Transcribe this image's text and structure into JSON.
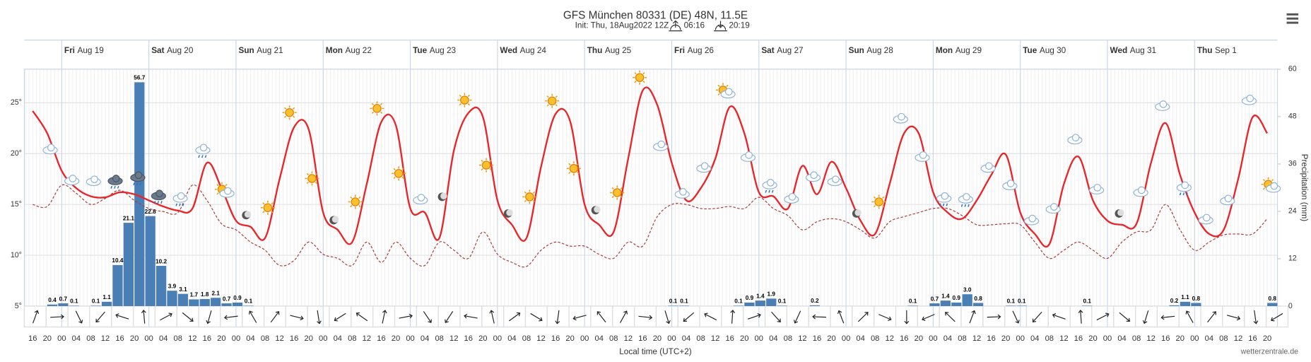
{
  "chart_data": [
    {
      "type": "line",
      "title": "GFS München 80331 (DE) 48N, 11.5E",
      "subtitle": "Init: Thu, 18Aug2022 12Z",
      "sunrise": "06:16",
      "sunset": "20:19",
      "xlabel": "Local time (UTC+2)",
      "credit": "wetterzentrale.de",
      "days": [
        {
          "day": "Fri",
          "date": "Aug 19"
        },
        {
          "day": "Sat",
          "date": "Aug 20"
        },
        {
          "day": "Sun",
          "date": "Aug 21"
        },
        {
          "day": "Mon",
          "date": "Aug 22"
        },
        {
          "day": "Tue",
          "date": "Aug 23"
        },
        {
          "day": "Wed",
          "date": "Aug 24"
        },
        {
          "day": "Thu",
          "date": "Aug 25"
        },
        {
          "day": "Fri",
          "date": "Aug 26"
        },
        {
          "day": "Sat",
          "date": "Aug 27"
        },
        {
          "day": "Sun",
          "date": "Aug 28"
        },
        {
          "day": "Mon",
          "date": "Aug 29"
        },
        {
          "day": "Tue",
          "date": "Aug 30"
        },
        {
          "day": "Wed",
          "date": "Aug 31"
        },
        {
          "day": "Thu",
          "date": "Sep 1"
        }
      ],
      "categories": [
        "16",
        "20",
        "00",
        "04",
        "08",
        "12",
        "16",
        "20",
        "00",
        "04",
        "08",
        "12",
        "16",
        "20",
        "00",
        "04",
        "08",
        "12",
        "16",
        "20",
        "00",
        "04",
        "08",
        "12",
        "16",
        "20",
        "00",
        "04",
        "08",
        "12",
        "16",
        "20",
        "00",
        "04",
        "08",
        "12",
        "16",
        "20",
        "00",
        "04",
        "08",
        "12",
        "16",
        "20",
        "00",
        "04",
        "08",
        "12",
        "16",
        "20",
        "00",
        "04",
        "08",
        "12",
        "16",
        "20",
        "00",
        "04",
        "08",
        "12",
        "16",
        "20",
        "00",
        "04",
        "08",
        "12",
        "16",
        "20",
        "00",
        "04",
        "08",
        "12",
        "16",
        "20",
        "00",
        "04",
        "08",
        "12",
        "16",
        "20",
        "00",
        "04",
        "08",
        "12",
        "16",
        "20"
      ],
      "ylim": [
        5,
        28.3
      ],
      "yticks": [
        {
          "value": 5,
          "label": "5°"
        },
        {
          "value": 10,
          "label": "10°"
        },
        {
          "value": 15,
          "label": "15°"
        },
        {
          "value": 20,
          "label": "20°"
        },
        {
          "value": 25,
          "label": "25°"
        }
      ],
      "grid": true,
      "series": [
        {
          "color": "#e8262a",
          "style": "solid",
          "values": [
            24.2,
            22.0,
            18.3,
            16.6,
            15.8,
            15.7,
            16.2,
            16.0,
            15.4,
            14.8,
            14.4,
            14.6,
            19.1,
            16.6,
            13.4,
            12.8,
            11.7,
            17.5,
            22.6,
            22.4,
            14.2,
            12.5,
            11.3,
            17.0,
            23.1,
            22.8,
            14.6,
            14.2,
            11.7,
            20.3,
            24.0,
            23.6,
            15.4,
            13.0,
            11.7,
            18.7,
            23.9,
            23.2,
            15.0,
            13.0,
            12.3,
            19.5,
            26.2,
            24.8,
            19.1,
            15.4,
            16.6,
            19.5,
            24.6,
            22.0,
            16.2,
            15.8,
            14.6,
            18.8,
            16.0,
            19.2,
            16.6,
            13.4,
            12.1,
            17.0,
            22.0,
            22.0,
            16.2,
            14.2,
            13.6,
            15.4,
            17.9,
            19.9,
            14.2,
            12.1,
            11.1,
            17.0,
            19.7,
            15.4,
            13.4,
            13.0,
            13.1,
            19.1,
            23.0,
            17.9,
            14.2,
            12.1,
            12.5,
            17.5,
            23.6,
            22.0
          ]
        },
        {
          "color": "#a83a3a",
          "style": "dashed",
          "values": [
            15.0,
            14.8,
            16.9,
            16.1,
            15.0,
            15.6,
            16.4,
            15.4,
            14.6,
            14.3,
            14.2,
            16.9,
            15.4,
            13.1,
            12.5,
            11.3,
            10.5,
            9.0,
            9.5,
            11.3,
            10.1,
            9.7,
            9.0,
            11.3,
            9.3,
            11.3,
            9.7,
            9.0,
            11.3,
            10.5,
            9.7,
            12.3,
            10.1,
            9.3,
            8.9,
            10.5,
            11.3,
            10.9,
            10.9,
            10.1,
            9.7,
            11.3,
            10.9,
            13.8,
            15.0,
            15.0,
            14.6,
            14.6,
            14.8,
            14.6,
            15.7,
            14.6,
            13.9,
            12.5,
            13.3,
            13.6,
            13.3,
            12.5,
            11.7,
            13.3,
            13.8,
            14.2,
            14.6,
            14.6,
            13.9,
            13.0,
            13.0,
            13.1,
            13.0,
            11.3,
            9.7,
            10.5,
            11.3,
            10.5,
            9.7,
            11.3,
            12.3,
            12.5,
            15.0,
            12.5,
            10.5,
            11.3,
            12.0,
            12.1,
            12.1,
            13.6
          ]
        }
      ]
    },
    {
      "type": "bar",
      "y2label": "Precipitation (mm)",
      "color": "#4a7fb5",
      "y2lim": [
        0,
        60
      ],
      "y2ticks": [
        0,
        12,
        24,
        36,
        48,
        60
      ],
      "categories": [
        null,
        null,
        null,
        null,
        null,
        null,
        null,
        null,
        null,
        null,
        null,
        null,
        null,
        null,
        null,
        null,
        null,
        null,
        null,
        null,
        null,
        null,
        null,
        null,
        null,
        null,
        null,
        null,
        null,
        null,
        null,
        null,
        null,
        null,
        null,
        null,
        null,
        null,
        null,
        null,
        null,
        null,
        null,
        null,
        null,
        null,
        null,
        null,
        null,
        null,
        null,
        null,
        null,
        null,
        null,
        null,
        null,
        null,
        null,
        null,
        null,
        null,
        null,
        null,
        null,
        null,
        null,
        null,
        null,
        null,
        null,
        null,
        null,
        null,
        null,
        null,
        null,
        null,
        null,
        null,
        null,
        null,
        null,
        null,
        null,
        null,
        null,
        null,
        null,
        null,
        null,
        null,
        null,
        null,
        null,
        null,
        null,
        null,
        null,
        null,
        null,
        null,
        null,
        null,
        null,
        null,
        null,
        null,
        null,
        null,
        null,
        null,
        null,
        null
      ],
      "values": [
        0,
        0.4,
        0.7,
        0.1,
        0,
        0.1,
        1.1,
        10.4,
        21.1,
        56.7,
        22.8,
        10.2,
        3.9,
        3.1,
        1.7,
        1.8,
        2.1,
        0.7,
        0.9,
        0.1,
        0,
        0,
        0,
        0,
        0,
        0,
        0,
        0,
        0,
        0,
        0,
        0,
        0,
        0,
        0,
        0,
        0,
        0,
        0,
        0,
        0,
        0,
        0,
        0,
        0,
        0,
        0,
        0,
        0,
        0,
        0,
        0,
        0,
        0,
        0,
        0,
        0,
        0,
        0.1,
        0.1,
        0,
        0,
        0,
        0,
        0.1,
        0.9,
        1.4,
        1.9,
        0.1,
        0,
        0,
        0.2,
        0,
        0,
        0,
        0,
        0,
        0,
        0,
        0,
        0.1,
        0,
        0.7,
        1.4,
        0.9,
        3,
        0.8,
        0,
        0,
        0.1,
        0.1,
        0,
        0,
        0,
        0,
        0,
        0.1,
        0,
        0,
        0,
        0,
        0,
        0,
        0,
        0.2,
        1.1,
        0.8,
        0,
        0,
        0,
        0,
        0,
        0,
        0.8
      ],
      "value_labels": [
        null,
        null,
        null,
        null,
        null,
        null,
        null,
        null,
        null,
        null,
        null,
        null,
        null,
        null,
        null,
        null,
        null,
        null,
        null,
        null,
        null,
        null,
        null,
        null,
        null,
        null,
        null,
        null,
        null,
        null,
        null,
        null,
        null,
        null,
        null,
        null,
        null,
        null,
        null,
        null,
        null,
        null,
        null,
        null,
        null,
        null,
        null,
        null,
        null,
        null,
        null,
        null,
        null,
        null,
        null,
        null,
        null,
        null,
        null,
        null,
        null,
        null,
        null,
        null,
        null,
        null,
        null,
        null,
        null,
        null,
        null,
        null,
        null,
        null,
        null,
        null,
        null,
        null,
        null,
        null,
        null,
        null,
        null,
        null,
        null,
        "3.0",
        null,
        null,
        null,
        null,
        null,
        null,
        null,
        null,
        null,
        null,
        null,
        null,
        null,
        null,
        null,
        null,
        null,
        null,
        null,
        null,
        null,
        null,
        null,
        null,
        null,
        null,
        null,
        null
      ]
    }
  ]
}
